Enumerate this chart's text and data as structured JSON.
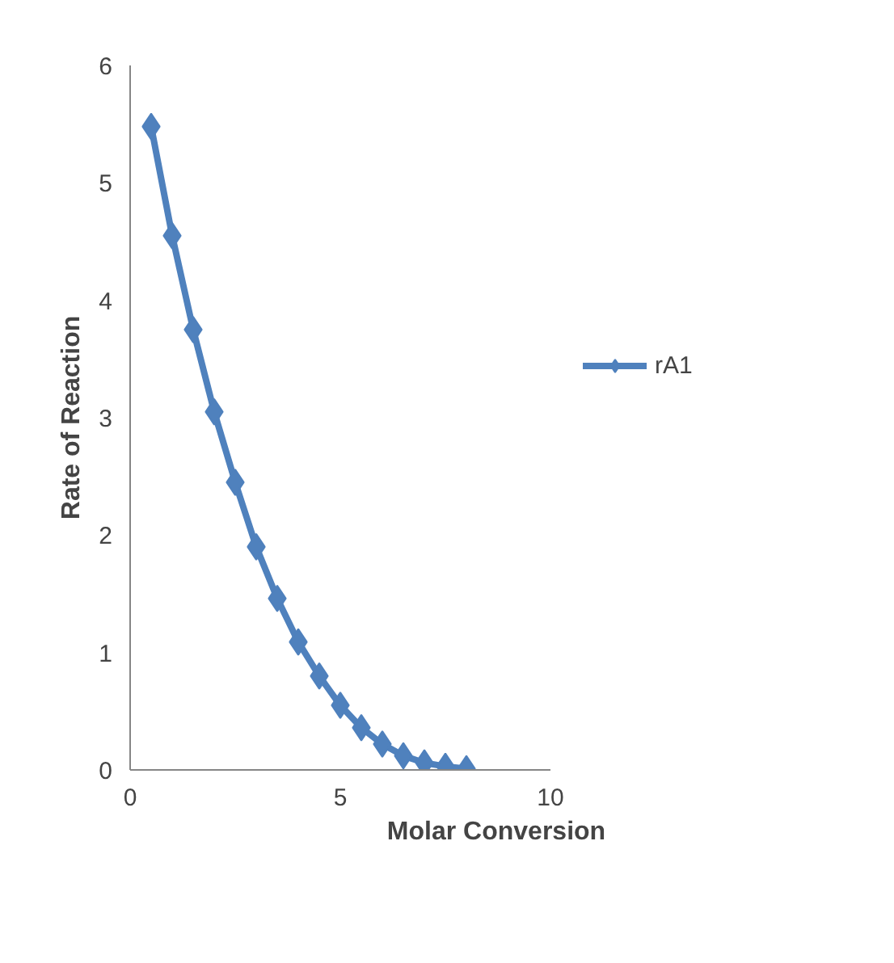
{
  "chart_data": {
    "type": "line",
    "xlabel": "Molar Conversion",
    "ylabel": "Rate of Reaction",
    "x": [
      0.5,
      1.0,
      1.5,
      2.0,
      2.5,
      3.0,
      3.5,
      4.0,
      4.5,
      5.0,
      5.5,
      6.0,
      6.5,
      7.0,
      7.5,
      8.0
    ],
    "series": [
      {
        "name": "rA1",
        "color": "#4f81bd",
        "values": [
          5.48,
          4.55,
          3.75,
          3.05,
          2.45,
          1.9,
          1.46,
          1.09,
          0.8,
          0.55,
          0.36,
          0.22,
          0.12,
          0.06,
          0.03,
          0.01
        ]
      }
    ],
    "xlim": [
      0,
      10
    ],
    "ylim": [
      0,
      6
    ],
    "xticks": [
      0,
      5,
      10
    ],
    "yticks": [
      0,
      1,
      2,
      3,
      4,
      5,
      6
    ],
    "marker": "diamond",
    "legend": "right",
    "grid": false
  }
}
